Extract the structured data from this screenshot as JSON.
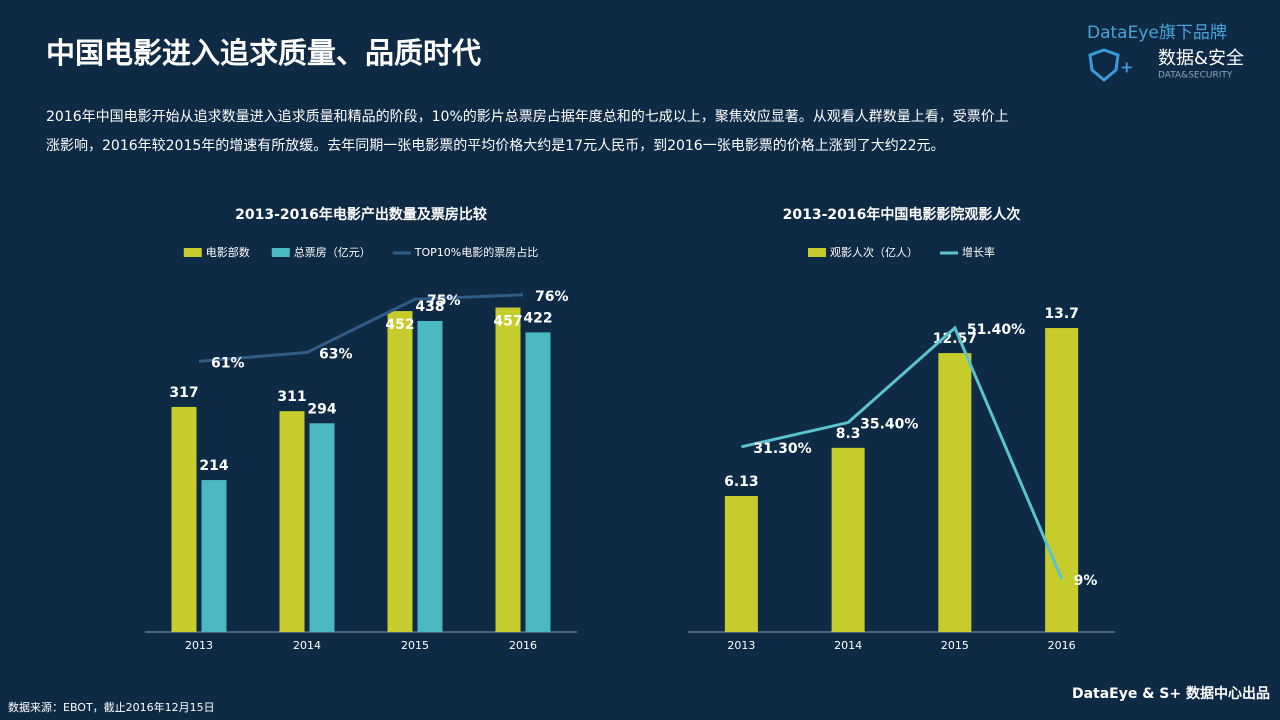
{
  "header": {
    "title": "中国电影进入追求质量、品质时代",
    "brand_line": "DataEye旗下品牌",
    "brand_name": "数据&安全",
    "brand_sub": "DATA&SECURITY",
    "paragraph": [
      "2016年中国电影开始从追求数量进入追求质量和精品的阶段，10%的影片总票房占据年度总和的七成以上，聚焦效应显著。从观看人群数量上看，受票价上",
      "涨影响，2016年较2015年的增速有所放缓。去年同期一张电影票的平均价格大约是17元人民币，到2016一张电影票的价格上涨到了大约22元。"
    ]
  },
  "chart_data": [
    {
      "type": "bar",
      "title": "2013-2016年电影产出数量及票房比较",
      "categories": [
        "2013",
        "2014",
        "2015",
        "2016"
      ],
      "ylim": [
        0,
        500
      ],
      "y2lim": [
        0,
        80
      ],
      "series": [
        {
          "name": "电影部数",
          "color": "#c6cc2b",
          "values": [
            317,
            311,
            452,
            457
          ]
        },
        {
          "name": "总票房（亿元）",
          "color": "#4bb9c3",
          "values": [
            214,
            294,
            438,
            422
          ]
        },
        {
          "name": "TOP10%电影的票房占比",
          "color": "#2f5d88",
          "type": "line",
          "axis": "y2",
          "values": [
            61,
            63,
            75,
            76
          ],
          "value_labels": [
            "61%",
            "63%",
            "75%",
            "76%"
          ]
        }
      ]
    },
    {
      "type": "bar",
      "title": "2013-2016年中国电影影院观影人次",
      "categories": [
        "2013",
        "2014",
        "2015",
        "2016"
      ],
      "ylim": [
        0,
        16
      ],
      "y2lim": [
        0,
        60
      ],
      "series": [
        {
          "name": "观影人次（亿人）",
          "color": "#c6cc2b",
          "values": [
            6.13,
            8.3,
            12.57,
            13.7
          ]
        },
        {
          "name": "增长率",
          "color": "#5bc2d0",
          "type": "line",
          "axis": "y2",
          "values": [
            31.3,
            35.4,
            51.4,
            9
          ],
          "value_labels": [
            "31.30%",
            "35.40%",
            "51.40%",
            "9%"
          ]
        }
      ]
    }
  ],
  "footer": {
    "source": "数据来源：EBOT，截止2016年12月15日",
    "credit": "DataEye & S+ 数据中心出品"
  }
}
